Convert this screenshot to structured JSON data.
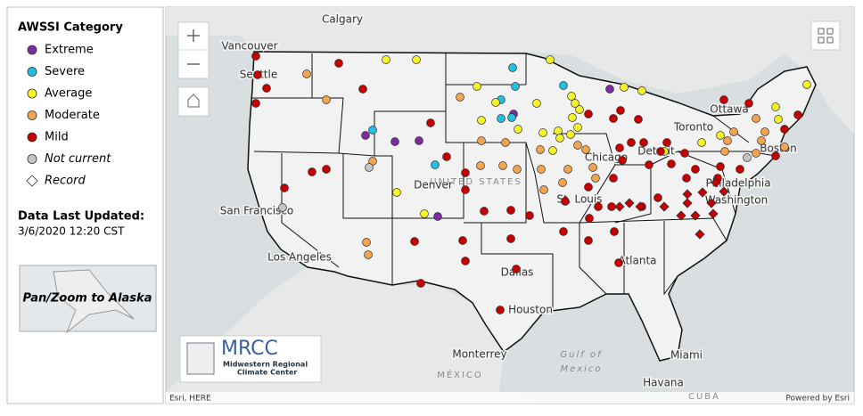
{
  "legend": {
    "title": "AWSSI Category",
    "items": [
      {
        "label": "Extreme",
        "color": "#7b2c9e"
      },
      {
        "label": "Severe",
        "color": "#22bfe0"
      },
      {
        "label": "Average",
        "color": "#f5f22c"
      },
      {
        "label": "Moderate",
        "color": "#f2a44e"
      },
      {
        "label": "Mild",
        "color": "#c40000"
      },
      {
        "label": "Not current",
        "color": "#c4c4c4"
      },
      {
        "label": "Record",
        "color": "#ffffff"
      }
    ]
  },
  "updated": {
    "label": "Data Last Updated:",
    "value": "3/6/2020 12:20 CST"
  },
  "alaska_button": "Pan/Zoom to Alaska",
  "logo": {
    "name": "MRCC",
    "line1": "Midwestern Regional",
    "line2": "Climate Center"
  },
  "attribution": "Esri, HERE",
  "powered_by": "Powered by Esri",
  "map_labels": [
    "Calgary",
    "Vancouver",
    "Seattle",
    "Ottawa",
    "Toronto",
    "Detroit",
    "Chicago",
    "Boston",
    "Philadelphia",
    "Washington",
    "St. Louis",
    "Denver",
    "San Francisco",
    "Los Angeles",
    "Dallas",
    "Houston",
    "Atlanta",
    "Monterrey",
    "MÉXICO",
    "Miami",
    "Havana",
    "CUBA",
    "UNITED STATES",
    "Gulf of",
    "Mexico"
  ]
}
